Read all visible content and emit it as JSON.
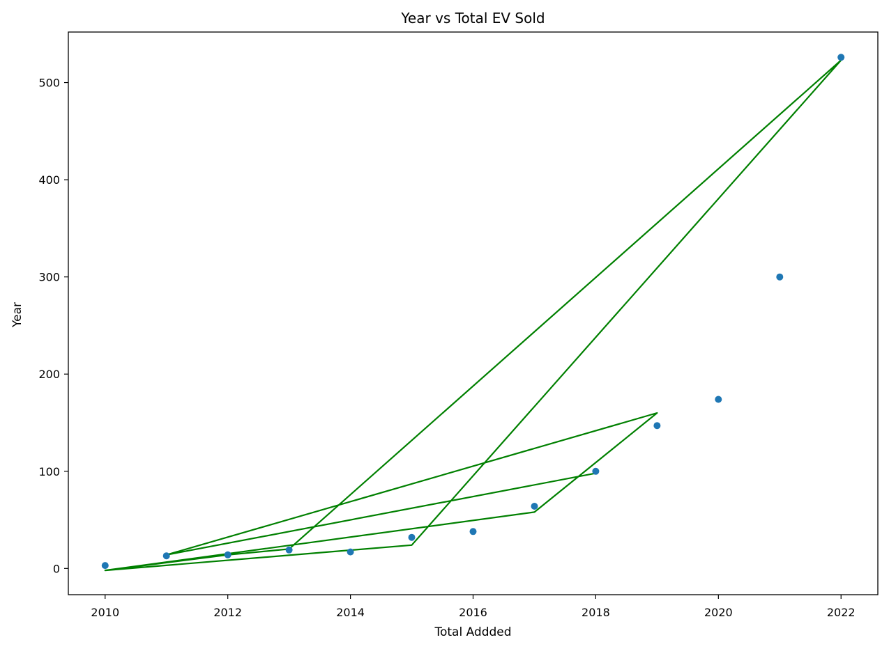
{
  "chart_data": {
    "type": "scatter",
    "title": "Year vs Total EV Sold",
    "xlabel": "Total Addded",
    "ylabel": "Year",
    "xlim": [
      2009.4,
      2022.6
    ],
    "ylim": [
      -27,
      552
    ],
    "xticks": [
      2010,
      2012,
      2014,
      2016,
      2018,
      2020,
      2022
    ],
    "yticks": [
      0,
      100,
      200,
      300,
      400,
      500
    ],
    "grid": false,
    "series": [
      {
        "kind": "scatter",
        "color": "#1f77b4",
        "x": [
          2010,
          2011,
          2012,
          2013,
          2014,
          2015,
          2016,
          2017,
          2018,
          2019,
          2020,
          2021,
          2022
        ],
        "y": [
          3,
          13,
          14,
          19,
          17,
          32,
          38,
          64,
          100,
          147,
          174,
          300,
          526
        ]
      },
      {
        "kind": "line",
        "color": "#008000",
        "x": [
          2018,
          2011,
          2019,
          2017,
          2010,
          2015,
          2022,
          2013,
          2012,
          2010
        ],
        "y": [
          98,
          14,
          160,
          58,
          -2,
          24,
          523,
          20,
          14,
          -2
        ]
      }
    ]
  }
}
